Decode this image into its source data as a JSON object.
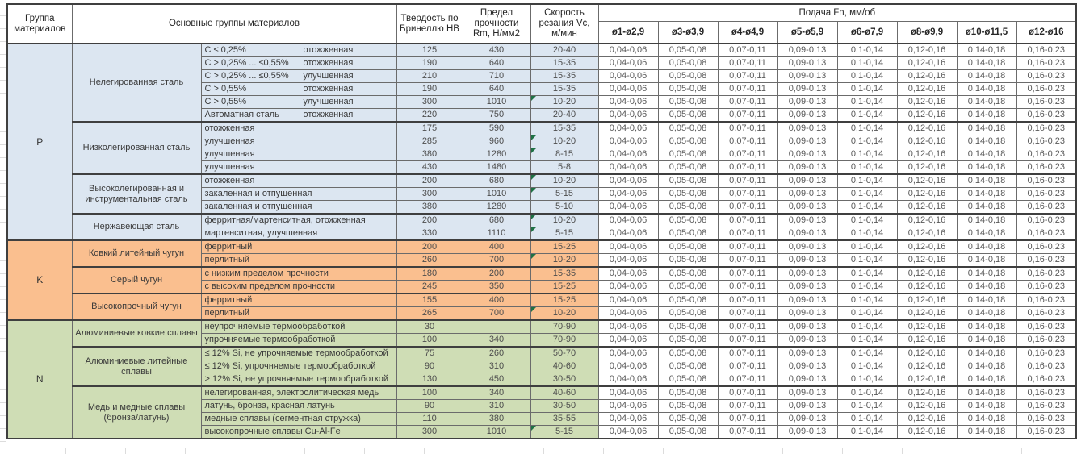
{
  "header": {
    "col_group": "Группа материалов",
    "col_material": "Основные группы материалов",
    "col_hb": "Твердость по Бринеллю HB",
    "col_rm": "Предел прочности Rm, Н/мм2",
    "col_vc": "Скорость резания Vc, м/мин",
    "col_feed": "Подача Fn, мм/об",
    "diameters": [
      "ø1-ø2,9",
      "ø3-ø3,9",
      "ø4-ø4,9",
      "ø5-ø5,9",
      "ø6-ø7,9",
      "ø8-ø9,9",
      "ø10-ø11,5",
      "ø12-ø16"
    ]
  },
  "feeds": [
    "0,04-0,06",
    "0,05-0,08",
    "0,07-0,11",
    "0,09-0,13",
    "0,1-0,14",
    "0,12-0,16",
    "0,14-0,18",
    "0,16-0,23"
  ],
  "flag_color": "#1f7145",
  "groups": [
    {
      "letter": "P",
      "color": "#dce6f1",
      "subgroups": [
        {
          "name": "Нелегированная сталь",
          "rows": [
            {
              "desc": "C ≤ 0,25%",
              "state": "отожженная",
              "hb": "125",
              "rm": "430",
              "vc": "20-40",
              "flag": false
            },
            {
              "desc": "C > 0,25% ... ≤0,55%",
              "state": "отожженная",
              "hb": "190",
              "rm": "640",
              "vc": "15-35",
              "flag": false
            },
            {
              "desc": "C > 0,25% ... ≤0,55%",
              "state": "улучшенная",
              "hb": "210",
              "rm": "710",
              "vc": "15-35",
              "flag": false
            },
            {
              "desc": "C > 0,55%",
              "state": "отожженная",
              "hb": "190",
              "rm": "640",
              "vc": "15-35",
              "flag": false
            },
            {
              "desc": "C > 0,55%",
              "state": "улучшенная",
              "hb": "300",
              "rm": "1010",
              "vc": "10-20",
              "flag": true
            },
            {
              "desc": "Автоматная сталь",
              "state": "отожженная",
              "hb": "220",
              "rm": "750",
              "vc": "20-40",
              "flag": false
            }
          ]
        },
        {
          "name": "Низколегированная сталь",
          "rows": [
            {
              "desc": "отожженная",
              "hb": "175",
              "rm": "590",
              "vc": "15-35",
              "flag": false
            },
            {
              "desc": "улучшенная",
              "hb": "285",
              "rm": "960",
              "vc": "10-20",
              "flag": true
            },
            {
              "desc": "улучшенная",
              "hb": "380",
              "rm": "1280",
              "vc": "8-15",
              "flag": true
            },
            {
              "desc": "улучшенная",
              "hb": "430",
              "rm": "1480",
              "vc": "5-8",
              "flag": false
            }
          ]
        },
        {
          "name": "Высоколегированная и инструментальная сталь",
          "rows": [
            {
              "desc": "отожженная",
              "hb": "200",
              "rm": "680",
              "vc": "10-20",
              "flag": true
            },
            {
              "desc": "закаленная и отпущенная",
              "hb": "300",
              "rm": "1010",
              "vc": "5-15",
              "flag": true
            },
            {
              "desc": "закаленная и отпущенная",
              "hb": "380",
              "rm": "1280",
              "vc": "5-10",
              "flag": false
            }
          ]
        },
        {
          "name": "Нержавеющая сталь",
          "rows": [
            {
              "desc": "ферритная/мартенситная, отожженная",
              "hb": "200",
              "rm": "680",
              "vc": "10-20",
              "flag": true
            },
            {
              "desc": "мартенситная, улучшенная",
              "hb": "330",
              "rm": "1110",
              "vc": "5-15",
              "flag": true
            }
          ]
        }
      ]
    },
    {
      "letter": "K",
      "color": "#fabf8f",
      "subgroups": [
        {
          "name": "Ковкий литейный чугун",
          "rows": [
            {
              "desc": "ферритный",
              "hb": "200",
              "rm": "400",
              "vc": "15-25",
              "flag": false
            },
            {
              "desc": "перлитный",
              "hb": "260",
              "rm": "700",
              "vc": "10-20",
              "flag": true
            }
          ]
        },
        {
          "name": "Серый чугун",
          "rows": [
            {
              "desc": "с низким пределом прочности",
              "hb": "180",
              "rm": "200",
              "vc": "15-35",
              "flag": false
            },
            {
              "desc": "с высоким пределом прочности",
              "hb": "245",
              "rm": "350",
              "vc": "15-25",
              "flag": false
            }
          ]
        },
        {
          "name": "Высокопрочный чугун",
          "rows": [
            {
              "desc": "ферритный",
              "hb": "155",
              "rm": "400",
              "vc": "15-25",
              "flag": false
            },
            {
              "desc": "перлитный",
              "hb": "265",
              "rm": "700",
              "vc": "10-20",
              "flag": true
            }
          ]
        }
      ]
    },
    {
      "letter": "N",
      "color": "#cfddb5",
      "subgroups": [
        {
          "name": "Алюминиевые ковкие сплавы",
          "rows": [
            {
              "desc": "неупрочняемые термообработкой",
              "hb": "30",
              "rm": "",
              "vc": "70-90",
              "flag": false
            },
            {
              "desc": "упрочняемые термообработкой",
              "hb": "100",
              "rm": "340",
              "vc": "70-90",
              "flag": false
            }
          ]
        },
        {
          "name": "Алюминиевые литейные сплавы",
          "rows": [
            {
              "desc": "≤ 12% Si, не упрочняемые термообработкой",
              "hb": "75",
              "rm": "260",
              "vc": "50-70",
              "flag": false
            },
            {
              "desc": "≤ 12% Si, упрочняемые термообработкой",
              "hb": "90",
              "rm": "310",
              "vc": "40-60",
              "flag": false
            },
            {
              "desc": "> 12% Si, не упрочняемые термообработкой",
              "hb": "130",
              "rm": "450",
              "vc": "30-50",
              "flag": false
            }
          ]
        },
        {
          "name": "Медь и медные сплавы (бронза/латунь)",
          "rows": [
            {
              "desc": "нелегированная, электролитическая медь",
              "hb": "100",
              "rm": "340",
              "vc": "40-60",
              "flag": false
            },
            {
              "desc": "латунь, бронза, красная латунь",
              "hb": "90",
              "rm": "310",
              "vc": "30-50",
              "flag": false
            },
            {
              "desc": "медные сплавы (сегментная стружка)",
              "hb": "110",
              "rm": "380",
              "vc": "35-55",
              "flag": false
            },
            {
              "desc": "высокопрочные сплавы Cu-Al-Fe",
              "hb": "300",
              "rm": "1010",
              "vc": "5-15",
              "flag": true
            }
          ]
        }
      ]
    }
  ]
}
